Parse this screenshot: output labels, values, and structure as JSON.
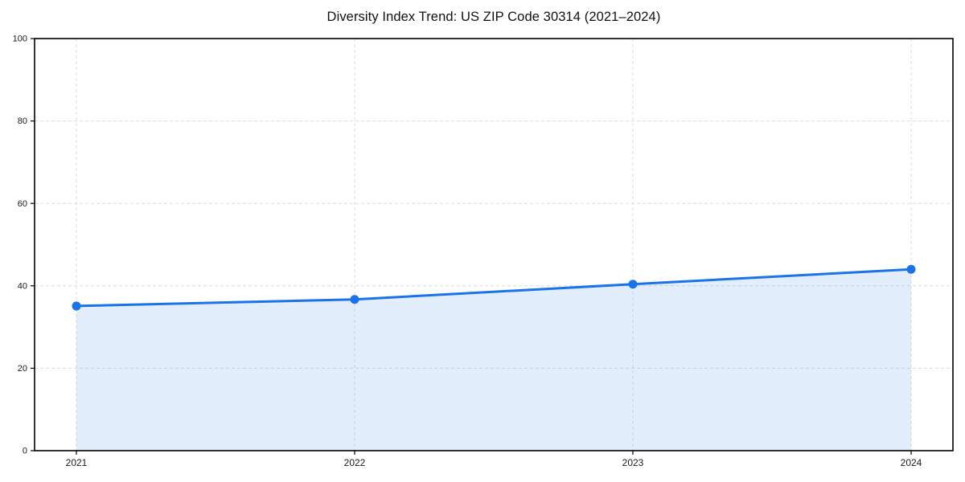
{
  "chart_data": {
    "type": "area",
    "title": "Diversity Index Trend: US ZIP Code 30314 (2021–2024)",
    "categories": [
      "2021",
      "2022",
      "2023",
      "2024"
    ],
    "series": [
      {
        "name": "Diversity Index",
        "values": [
          35.1,
          36.7,
          40.4,
          44.0
        ]
      }
    ],
    "xlabel": "",
    "ylabel": "",
    "ylim": [
      0,
      100
    ],
    "yticks": [
      0,
      20,
      40,
      60,
      80,
      100
    ],
    "grid": true,
    "grid_style": "dashed",
    "legend_position": "none",
    "colors": {
      "line": "#1a73e8",
      "marker": "#1a73e8",
      "fill": "rgba(26,115,232,0.12)",
      "grid": "#dcdcdc",
      "spine": "#000000",
      "tick_label": "#1a1a1a"
    }
  }
}
